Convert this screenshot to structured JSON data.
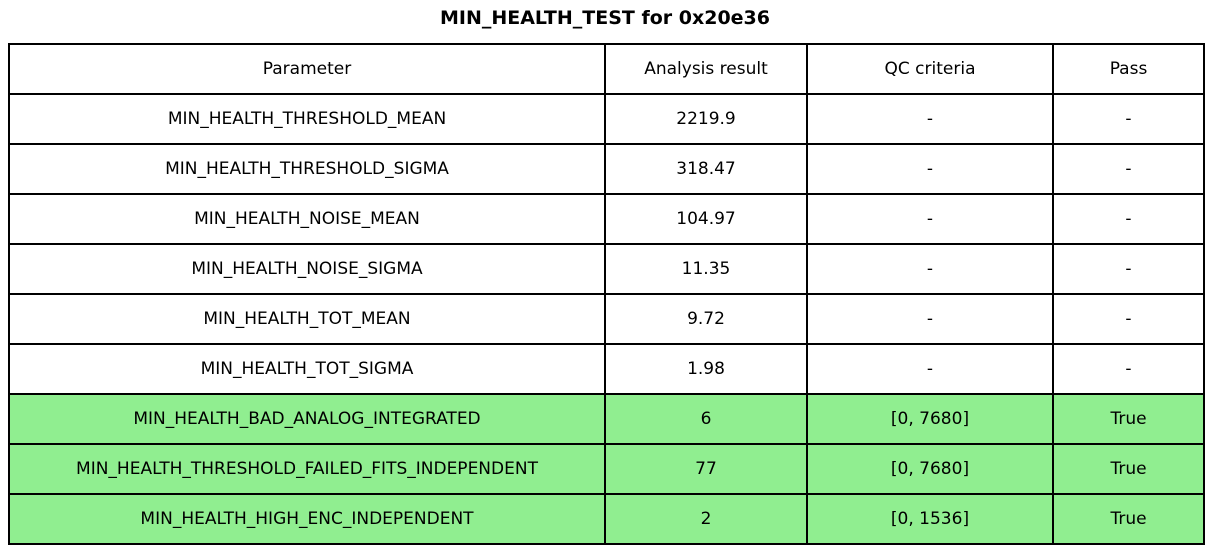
{
  "title": "MIN_HEALTH_TEST for 0x20e36",
  "colors": {
    "highlight_green": "#90EE90",
    "border": "#000000",
    "background": "#ffffff",
    "text": "#000000"
  },
  "chart_data": {
    "type": "table",
    "title": "MIN_HEALTH_TEST for 0x20e36",
    "columns": [
      "Parameter",
      "Analysis result",
      "QC criteria",
      "Pass"
    ],
    "rows": [
      [
        "MIN_HEALTH_THRESHOLD_MEAN",
        "2219.9",
        "-",
        "-"
      ],
      [
        "MIN_HEALTH_THRESHOLD_SIGMA",
        "318.47",
        "-",
        "-"
      ],
      [
        "MIN_HEALTH_NOISE_MEAN",
        "104.97",
        "-",
        "-"
      ],
      [
        "MIN_HEALTH_NOISE_SIGMA",
        "11.35",
        "-",
        "-"
      ],
      [
        "MIN_HEALTH_TOT_MEAN",
        "9.72",
        "-",
        "-"
      ],
      [
        "MIN_HEALTH_TOT_SIGMA",
        "1.98",
        "-",
        "-"
      ],
      [
        "MIN_HEALTH_BAD_ANALOG_INTEGRATED",
        "6",
        "[0, 7680]",
        "True"
      ],
      [
        "MIN_HEALTH_THRESHOLD_FAILED_FITS_INDEPENDENT",
        "77",
        "[0, 7680]",
        "True"
      ],
      [
        "MIN_HEALTH_HIGH_ENC_INDEPENDENT",
        "2",
        "[0, 1536]",
        "True"
      ]
    ],
    "highlighted_rows": [
      6,
      7,
      8
    ],
    "highlight_color": "#90EE90",
    "layout": "header row on top, all cells center-aligned, black grid lines"
  }
}
